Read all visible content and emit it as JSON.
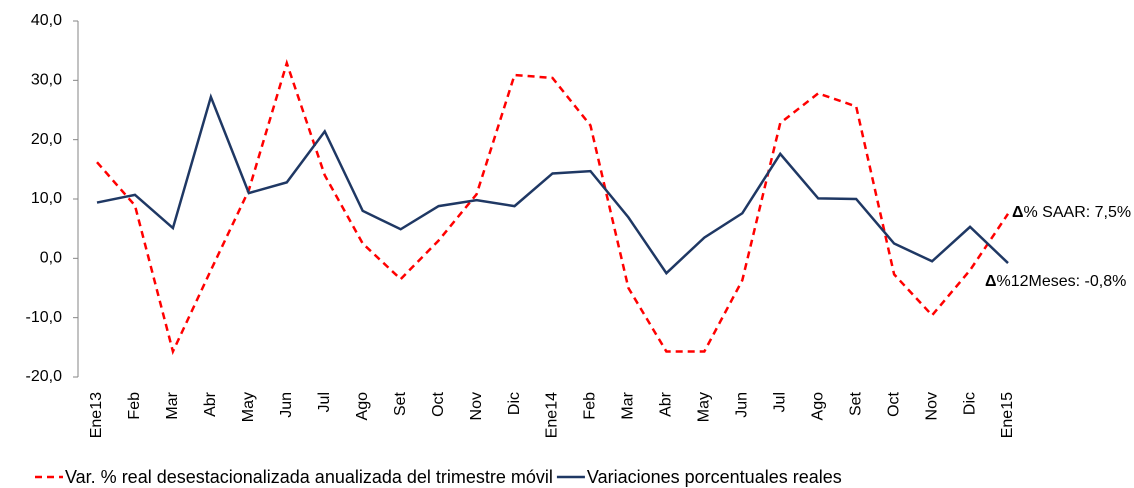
{
  "chart_data": {
    "type": "line",
    "categories": [
      "Ene13",
      "Feb",
      "Mar",
      "Abr",
      "May",
      "Jun",
      "Jul",
      "Ago",
      "Set",
      "Oct",
      "Nov",
      "Dic",
      "Ene14",
      "Feb",
      "Mar",
      "Abr",
      "May",
      "Jun",
      "Jul",
      "Ago",
      "Set",
      "Oct",
      "Nov",
      "Dic",
      "Ene15"
    ],
    "series": [
      {
        "name": "Var. % real desestacionalizada anualizada del trimestre móvil",
        "color": "#ff0000",
        "dash": true,
        "values": [
          16.2,
          8.9,
          -15.7,
          -2.0,
          11.5,
          32.9,
          14.0,
          2.5,
          -3.5,
          3.0,
          10.8,
          30.9,
          30.4,
          22.4,
          -5.0,
          -15.7,
          -15.7,
          -3.7,
          22.8,
          27.8,
          25.6,
          -2.7,
          -9.6,
          -2.0,
          7.5
        ]
      },
      {
        "name": "Variaciones porcentuales reales",
        "color": "#1f3864",
        "dash": false,
        "values": [
          9.4,
          10.7,
          5.1,
          27.2,
          11.0,
          12.8,
          21.4,
          8.0,
          4.9,
          8.8,
          9.8,
          8.8,
          14.3,
          14.7,
          6.9,
          -2.5,
          3.5,
          7.6,
          17.6,
          10.1,
          10.0,
          2.5,
          -0.5,
          5.3,
          -0.8
        ]
      }
    ],
    "ylim": [
      -20,
      40
    ],
    "yticks": [
      {
        "value": -20,
        "label": "-20,0"
      },
      {
        "value": -10,
        "label": "-10,0"
      },
      {
        "value": 0,
        "label": "0,0"
      },
      {
        "value": 10,
        "label": "10,0"
      },
      {
        "value": 20,
        "label": "20,0"
      },
      {
        "value": 30,
        "label": "30,0"
      },
      {
        "value": 40,
        "label": "40,0"
      }
    ],
    "annotations": [
      {
        "symbol": "Δ",
        "text": "% SAAR: 7,5%"
      },
      {
        "symbol": "Δ",
        "text": "%12Meses: -0,8%"
      }
    ]
  }
}
